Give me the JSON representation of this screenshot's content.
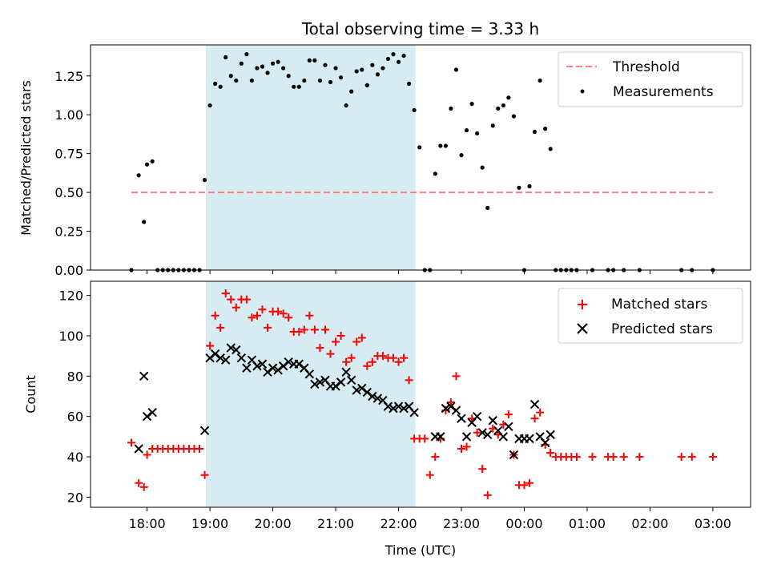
{
  "chart_data": [
    {
      "type": "scatter",
      "panel": "top",
      "title": "Total observing time = 3.33 h",
      "xlabel": "",
      "ylabel": "Matched/Predicted stars",
      "ylim": [
        0,
        1.45
      ],
      "yticks": [
        0,
        0.25,
        0.5,
        0.75,
        1.0,
        1.25
      ],
      "ytick_labels": [
        "0.00",
        "0.25",
        "0.50",
        "0.75",
        "1.00",
        "1.25"
      ],
      "grid": false,
      "legend_position": "top-right",
      "shaded_interval": [
        "18:56",
        "22:16"
      ],
      "threshold": {
        "name": "Threshold",
        "value": 0.5,
        "x_range": [
          "17:45",
          "03:00"
        ],
        "color": "#ff7f7f",
        "style": "dashed"
      },
      "series": [
        {
          "name": "Measurements",
          "color": "#000000",
          "marker": "dot",
          "points": [
            [
              "17:45",
              0.0
            ],
            [
              "17:52",
              0.61
            ],
            [
              "17:57",
              0.31
            ],
            [
              "18:00",
              0.68
            ],
            [
              "18:05",
              0.7
            ],
            [
              "18:10",
              0.0
            ],
            [
              "18:15",
              0.0
            ],
            [
              "18:20",
              0.0
            ],
            [
              "18:25",
              0.0
            ],
            [
              "18:30",
              0.0
            ],
            [
              "18:35",
              0.0
            ],
            [
              "18:40",
              0.0
            ],
            [
              "18:45",
              0.0
            ],
            [
              "18:50",
              0.0
            ],
            [
              "18:55",
              0.58
            ],
            [
              "19:00",
              1.06
            ],
            [
              "19:05",
              1.2
            ],
            [
              "19:10",
              1.18
            ],
            [
              "19:15",
              1.37
            ],
            [
              "19:20",
              1.25
            ],
            [
              "19:25",
              1.22
            ],
            [
              "19:30",
              1.33
            ],
            [
              "19:35",
              1.39
            ],
            [
              "19:40",
              1.22
            ],
            [
              "19:45",
              1.3
            ],
            [
              "19:50",
              1.31
            ],
            [
              "19:55",
              1.27
            ],
            [
              "20:00",
              1.33
            ],
            [
              "20:05",
              1.34
            ],
            [
              "20:10",
              1.3
            ],
            [
              "20:15",
              1.25
            ],
            [
              "20:20",
              1.18
            ],
            [
              "20:25",
              1.18
            ],
            [
              "20:30",
              1.22
            ],
            [
              "20:35",
              1.35
            ],
            [
              "20:40",
              1.35
            ],
            [
              "20:45",
              1.22
            ],
            [
              "20:50",
              1.32
            ],
            [
              "20:55",
              1.21
            ],
            [
              "21:00",
              1.3
            ],
            [
              "21:05",
              1.24
            ],
            [
              "21:10",
              1.06
            ],
            [
              "21:15",
              1.15
            ],
            [
              "21:20",
              1.28
            ],
            [
              "21:25",
              1.29
            ],
            [
              "21:30",
              1.19
            ],
            [
              "21:35",
              1.32
            ],
            [
              "21:40",
              1.26
            ],
            [
              "21:45",
              1.3
            ],
            [
              "21:50",
              1.36
            ],
            [
              "21:55",
              1.39
            ],
            [
              "22:00",
              1.34
            ],
            [
              "22:05",
              1.38
            ],
            [
              "22:10",
              1.2
            ],
            [
              "22:15",
              1.03
            ],
            [
              "22:20",
              0.79
            ],
            [
              "22:25",
              0.0
            ],
            [
              "22:30",
              0.0
            ],
            [
              "22:35",
              0.62
            ],
            [
              "22:40",
              0.8
            ],
            [
              "22:45",
              0.8
            ],
            [
              "22:50",
              1.04
            ],
            [
              "22:55",
              1.29
            ],
            [
              "23:00",
              0.74
            ],
            [
              "23:05",
              0.9
            ],
            [
              "23:10",
              1.07
            ],
            [
              "23:15",
              0.88
            ],
            [
              "23:20",
              0.66
            ],
            [
              "23:25",
              0.4
            ],
            [
              "23:30",
              0.93
            ],
            [
              "23:35",
              1.04
            ],
            [
              "23:40",
              1.06
            ],
            [
              "23:45",
              1.11
            ],
            [
              "23:50",
              0.99
            ],
            [
              "23:55",
              0.53
            ],
            [
              "00:00",
              0.0
            ],
            [
              "00:05",
              0.54
            ],
            [
              "00:10",
              0.89
            ],
            [
              "00:15",
              1.22
            ],
            [
              "00:20",
              0.91
            ],
            [
              "00:25",
              0.78
            ],
            [
              "00:30",
              0.0
            ],
            [
              "00:35",
              0.0
            ],
            [
              "00:40",
              0.0
            ],
            [
              "00:45",
              0.0
            ],
            [
              "00:50",
              0.0
            ],
            [
              "01:05",
              0.0
            ],
            [
              "01:20",
              0.0
            ],
            [
              "01:25",
              0.0
            ],
            [
              "01:35",
              0.0
            ],
            [
              "01:50",
              0.0
            ],
            [
              "02:30",
              0.0
            ],
            [
              "02:40",
              0.0
            ],
            [
              "03:00",
              0.0
            ]
          ]
        }
      ]
    },
    {
      "type": "scatter",
      "panel": "bottom",
      "title": "",
      "xlabel": "Time (UTC)",
      "ylabel": "Count",
      "ylim": [
        15,
        127
      ],
      "yticks": [
        20,
        40,
        60,
        80,
        100,
        120
      ],
      "ytick_labels": [
        "20",
        "40",
        "60",
        "80",
        "100",
        "120"
      ],
      "xticks": [
        "18:00",
        "19:00",
        "20:00",
        "21:00",
        "22:00",
        "23:00",
        "00:00",
        "01:00",
        "02:00",
        "03:00"
      ],
      "grid": false,
      "legend_position": "top-right",
      "shaded_interval": [
        "18:56",
        "22:16"
      ],
      "series": [
        {
          "name": "Matched stars",
          "color": "#ff0000",
          "marker": "plus",
          "points": [
            [
              "17:45",
              47
            ],
            [
              "17:52",
              27
            ],
            [
              "17:57",
              25
            ],
            [
              "18:00",
              41
            ],
            [
              "18:05",
              44
            ],
            [
              "18:10",
              44
            ],
            [
              "18:15",
              44
            ],
            [
              "18:20",
              44
            ],
            [
              "18:25",
              44
            ],
            [
              "18:30",
              44
            ],
            [
              "18:35",
              44
            ],
            [
              "18:40",
              44
            ],
            [
              "18:45",
              44
            ],
            [
              "18:50",
              44
            ],
            [
              "18:55",
              31
            ],
            [
              "19:00",
              95
            ],
            [
              "19:05",
              110
            ],
            [
              "19:10",
              104
            ],
            [
              "19:15",
              121
            ],
            [
              "19:20",
              118
            ],
            [
              "19:25",
              114
            ],
            [
              "19:30",
              118
            ],
            [
              "19:35",
              118
            ],
            [
              "19:40",
              109
            ],
            [
              "19:45",
              110
            ],
            [
              "19:50",
              113
            ],
            [
              "19:55",
              104
            ],
            [
              "20:00",
              112
            ],
            [
              "20:05",
              112
            ],
            [
              "20:10",
              111
            ],
            [
              "20:15",
              109
            ],
            [
              "20:20",
              102
            ],
            [
              "20:25",
              102
            ],
            [
              "20:30",
              103
            ],
            [
              "20:35",
              110
            ],
            [
              "20:40",
              103
            ],
            [
              "20:45",
              94
            ],
            [
              "20:50",
              103
            ],
            [
              "20:55",
              91
            ],
            [
              "21:00",
              97
            ],
            [
              "21:05",
              100
            ],
            [
              "21:10",
              87
            ],
            [
              "21:15",
              89
            ],
            [
              "21:20",
              97
            ],
            [
              "21:25",
              99
            ],
            [
              "21:30",
              85
            ],
            [
              "21:35",
              87
            ],
            [
              "21:40",
              90
            ],
            [
              "21:45",
              90
            ],
            [
              "21:50",
              89
            ],
            [
              "21:55",
              89
            ],
            [
              "22:00",
              87
            ],
            [
              "22:05",
              89
            ],
            [
              "22:10",
              78
            ],
            [
              "22:15",
              49
            ],
            [
              "22:20",
              49
            ],
            [
              "22:25",
              49
            ],
            [
              "22:30",
              31
            ],
            [
              "22:35",
              40
            ],
            [
              "22:40",
              49
            ],
            [
              "22:45",
              63
            ],
            [
              "22:50",
              67
            ],
            [
              "22:55",
              80
            ],
            [
              "23:00",
              44
            ],
            [
              "23:05",
              45
            ],
            [
              "23:10",
              59
            ],
            [
              "23:15",
              52
            ],
            [
              "23:20",
              34
            ],
            [
              "23:25",
              21
            ],
            [
              "23:30",
              54
            ],
            [
              "23:35",
              51
            ],
            [
              "23:40",
              56
            ],
            [
              "23:45",
              61
            ],
            [
              "23:50",
              41
            ],
            [
              "23:55",
              26
            ],
            [
              "00:00",
              26
            ],
            [
              "00:05",
              27
            ],
            [
              "00:10",
              59
            ],
            [
              "00:15",
              62
            ],
            [
              "00:20",
              46
            ],
            [
              "00:25",
              42
            ],
            [
              "00:30",
              40
            ],
            [
              "00:35",
              40
            ],
            [
              "00:40",
              40
            ],
            [
              "00:45",
              40
            ],
            [
              "00:50",
              40
            ],
            [
              "01:05",
              40
            ],
            [
              "01:20",
              40
            ],
            [
              "01:25",
              40
            ],
            [
              "01:35",
              40
            ],
            [
              "01:50",
              40
            ],
            [
              "02:30",
              40
            ],
            [
              "02:40",
              40
            ],
            [
              "03:00",
              40
            ]
          ]
        },
        {
          "name": "Predicted stars",
          "color": "#000000",
          "marker": "x",
          "points": [
            [
              "17:52",
              44
            ],
            [
              "17:57",
              80
            ],
            [
              "18:00",
              60
            ],
            [
              "18:05",
              62
            ],
            [
              "18:55",
              53
            ],
            [
              "19:00",
              89
            ],
            [
              "19:05",
              91
            ],
            [
              "19:10",
              89
            ],
            [
              "19:15",
              88
            ],
            [
              "19:20",
              94
            ],
            [
              "19:25",
              93
            ],
            [
              "19:30",
              89
            ],
            [
              "19:35",
              84
            ],
            [
              "19:40",
              88
            ],
            [
              "19:45",
              85
            ],
            [
              "19:50",
              86
            ],
            [
              "19:55",
              82
            ],
            [
              "20:00",
              84
            ],
            [
              "20:05",
              83
            ],
            [
              "20:10",
              85
            ],
            [
              "20:15",
              87
            ],
            [
              "20:20",
              86
            ],
            [
              "20:25",
              86
            ],
            [
              "20:30",
              84
            ],
            [
              "20:35",
              81
            ],
            [
              "20:40",
              76
            ],
            [
              "20:45",
              77
            ],
            [
              "20:50",
              78
            ],
            [
              "20:55",
              75
            ],
            [
              "21:00",
              75
            ],
            [
              "21:05",
              77
            ],
            [
              "21:10",
              82
            ],
            [
              "21:15",
              78
            ],
            [
              "21:20",
              73
            ],
            [
              "21:25",
              74
            ],
            [
              "21:30",
              72
            ],
            [
              "21:35",
              70
            ],
            [
              "21:40",
              69
            ],
            [
              "21:45",
              68
            ],
            [
              "21:50",
              65
            ],
            [
              "21:55",
              64
            ],
            [
              "22:00",
              65
            ],
            [
              "22:05",
              64
            ],
            [
              "22:10",
              65
            ],
            [
              "22:15",
              62
            ],
            [
              "22:35",
              50
            ],
            [
              "22:40",
              50
            ],
            [
              "22:45",
              64
            ],
            [
              "22:50",
              65
            ],
            [
              "22:55",
              63
            ],
            [
              "23:00",
              59
            ],
            [
              "23:05",
              50
            ],
            [
              "23:10",
              57
            ],
            [
              "23:15",
              60
            ],
            [
              "23:20",
              52
            ],
            [
              "23:25",
              51
            ],
            [
              "23:30",
              58
            ],
            [
              "23:35",
              53
            ],
            [
              "23:40",
              50
            ],
            [
              "23:45",
              55
            ],
            [
              "23:50",
              41
            ],
            [
              "23:55",
              49
            ],
            [
              "00:00",
              49
            ],
            [
              "00:05",
              49
            ],
            [
              "00:10",
              66
            ],
            [
              "00:15",
              50
            ],
            [
              "00:20",
              47
            ],
            [
              "00:25",
              51
            ]
          ]
        }
      ]
    }
  ]
}
